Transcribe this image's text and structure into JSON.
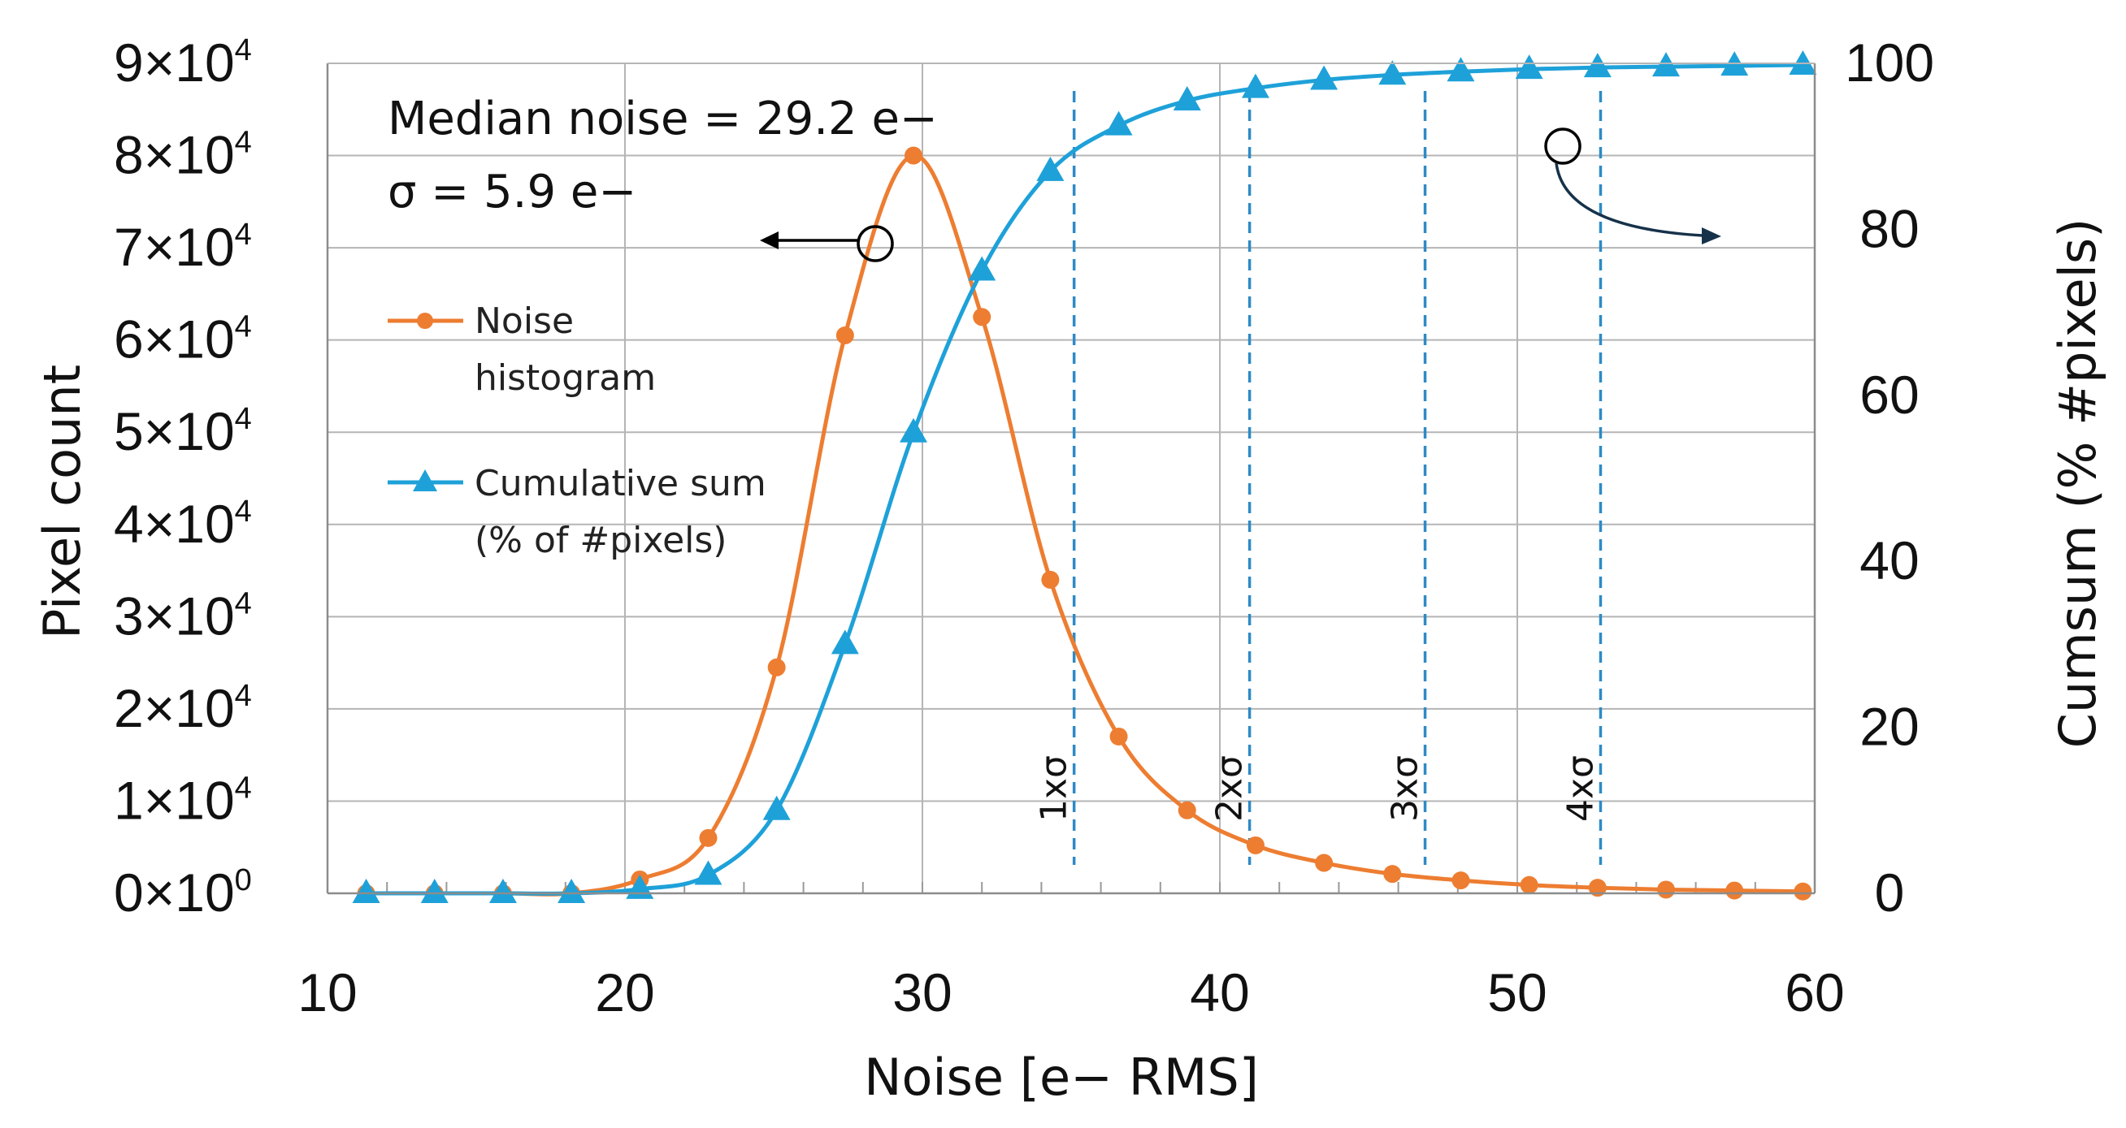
{
  "chart_data": {
    "type": "line",
    "x_axis": {
      "label": "Noise [e− RMS]",
      "range": [
        10,
        60
      ],
      "ticks": [
        "10",
        "20",
        "30",
        "40",
        "50",
        "60"
      ],
      "tick_values": [
        10,
        20,
        30,
        40,
        50,
        60
      ]
    },
    "y_axis_left": {
      "label": "Pixel count",
      "range": [
        0,
        90000
      ],
      "tick_values": [
        0,
        10000,
        20000,
        30000,
        40000,
        50000,
        60000,
        70000,
        80000,
        90000
      ],
      "tick_mantissas": [
        "0",
        "1",
        "2",
        "3",
        "4",
        "5",
        "6",
        "7",
        "8",
        "9"
      ],
      "tick_exponents": [
        "0",
        "4",
        "4",
        "4",
        "4",
        "4",
        "4",
        "4",
        "4",
        "4"
      ]
    },
    "y_axis_right": {
      "label": "Cumsum (% #pixels)",
      "range": [
        0,
        100
      ],
      "ticks": [
        "0",
        "20",
        "40",
        "60",
        "80",
        "100"
      ],
      "tick_values": [
        0,
        20,
        40,
        60,
        80,
        100
      ]
    },
    "annotations": {
      "median": "Median noise = 29.2 e−",
      "sigma": "σ = 5.9 e−"
    },
    "sigma_lines": [
      {
        "label": "1xσ",
        "x": 35.1
      },
      {
        "label": "2xσ",
        "x": 41.0
      },
      {
        "label": "3xσ",
        "x": 46.9
      },
      {
        "label": "4xσ",
        "x": 52.8
      }
    ],
    "series": [
      {
        "name": "Noise histogram",
        "legend_lines": [
          "Noise",
          "histogram"
        ],
        "axis": "left",
        "color": "#ED7D31",
        "marker": "circle",
        "x": [
          11.3,
          13.6,
          15.9,
          18.2,
          20.5,
          22.8,
          25.1,
          27.4,
          29.7,
          32.0,
          34.3,
          36.6,
          38.9,
          41.2,
          43.5,
          45.8,
          48.1,
          50.4,
          52.7,
          55.0,
          57.3,
          59.6
        ],
        "values": [
          0,
          0,
          0,
          0,
          1500,
          6000,
          24500,
          60500,
          80000,
          62500,
          34000,
          17000,
          9000,
          5200,
          3300,
          2100,
          1400,
          900,
          600,
          400,
          300,
          200
        ]
      },
      {
        "name": "Cumulative sum (% of #pixels)",
        "legend_lines": [
          "Cumulative sum",
          "(% of #pixels)"
        ],
        "axis": "right",
        "color": "#1EA1D9",
        "marker": "triangle",
        "x": [
          11.3,
          13.6,
          15.9,
          18.2,
          20.5,
          22.8,
          25.1,
          27.4,
          29.7,
          32.0,
          34.3,
          36.6,
          38.9,
          41.2,
          43.5,
          45.8,
          48.1,
          50.4,
          52.7,
          55.0,
          57.3,
          59.6
        ],
        "values": [
          0,
          0,
          0,
          0,
          0.5,
          2.2,
          10,
          30,
          55.5,
          75,
          87,
          92.5,
          95.5,
          97,
          98,
          98.6,
          99,
          99.3,
          99.5,
          99.6,
          99.7,
          99.8
        ]
      }
    ]
  }
}
